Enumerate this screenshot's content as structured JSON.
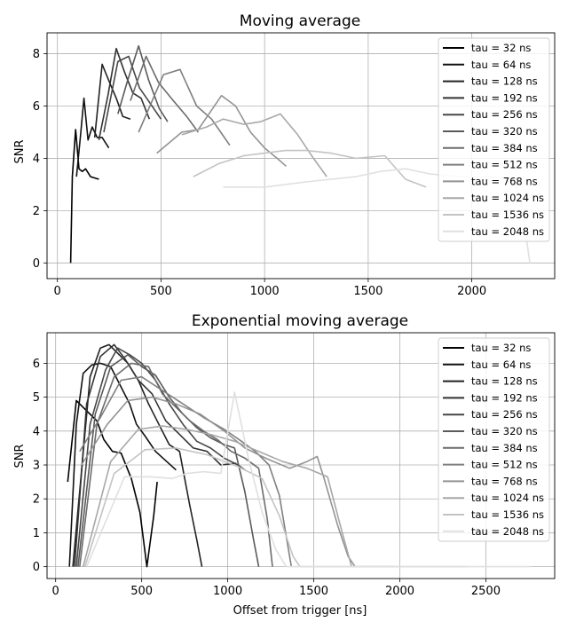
{
  "chart_data": [
    {
      "type": "line",
      "title": "Moving average",
      "xlabel": "",
      "ylabel": "SNR",
      "xlim": [
        -50,
        2400
      ],
      "ylim": [
        -0.6,
        8.8
      ],
      "xticks": [
        0,
        500,
        1000,
        1500,
        2000
      ],
      "yticks": [
        0,
        2,
        4,
        6,
        8
      ],
      "grid": true,
      "legend": "top-right",
      "series": [
        {
          "name": "tau = 32 ns",
          "color": "#000000",
          "x": [
            64,
            72,
            88,
            104,
            120,
            136,
            160,
            200
          ],
          "y": [
            0.0,
            3.3,
            5.1,
            3.6,
            3.5,
            3.6,
            3.3,
            3.2
          ]
        },
        {
          "name": "tau = 64 ns",
          "color": "#111111",
          "x": [
            92,
            112,
            128,
            148,
            168,
            192,
            216,
            248
          ],
          "y": [
            3.3,
            4.9,
            6.3,
            4.7,
            5.2,
            4.8,
            4.8,
            4.4
          ]
        },
        {
          "name": "tau = 128 ns",
          "color": "#222222",
          "x": [
            180,
            216,
            252,
            284,
            316,
            352
          ],
          "y": [
            4.8,
            7.6,
            6.9,
            6.3,
            5.6,
            5.5
          ]
        },
        {
          "name": "tau = 192 ns",
          "color": "#333333",
          "x": [
            200,
            244,
            284,
            324,
            364,
            404,
            444
          ],
          "y": [
            4.7,
            6.4,
            8.2,
            7.3,
            6.5,
            6.3,
            5.5
          ]
        },
        {
          "name": "tau = 256 ns",
          "color": "#474747",
          "x": [
            224,
            292,
            344,
            396,
            448,
            500
          ],
          "y": [
            5.0,
            7.7,
            7.9,
            6.7,
            6.1,
            5.5
          ]
        },
        {
          "name": "tau = 320 ns",
          "color": "#5a5a5a",
          "x": [
            292,
            336,
            392,
            440,
            492,
            532
          ],
          "y": [
            5.7,
            6.9,
            8.3,
            7.0,
            5.9,
            5.4
          ]
        },
        {
          "name": "tau = 384 ns",
          "color": "#6c6c6c",
          "x": [
            352,
            428,
            488,
            560,
            624,
            680
          ],
          "y": [
            6.2,
            7.9,
            6.9,
            6.2,
            5.6,
            5.0
          ]
        },
        {
          "name": "tau = 512 ns",
          "color": "#7f7f7f",
          "x": [
            392,
            512,
            592,
            672,
            744,
            832
          ],
          "y": [
            5.0,
            7.2,
            7.4,
            6.0,
            5.5,
            4.5
          ]
        },
        {
          "name": "tau = 768 ns",
          "color": "#939393",
          "x": [
            480,
            600,
            680,
            792,
            860,
            932,
            1000,
            1060,
            1104
          ],
          "y": [
            4.2,
            5.0,
            5.1,
            6.4,
            6.0,
            5.0,
            4.4,
            4.0,
            3.7
          ]
        },
        {
          "name": "tau = 1024 ns",
          "color": "#a8a8a8",
          "x": [
            600,
            720,
            800,
            900,
            980,
            1076,
            1160,
            1236,
            1300
          ],
          "y": [
            4.9,
            5.2,
            5.5,
            5.3,
            5.4,
            5.7,
            4.9,
            4.0,
            3.3
          ]
        },
        {
          "name": "tau = 1536 ns",
          "color": "#c3c3c3",
          "x": [
            656,
            780,
            900,
            1000,
            1100,
            1200,
            1320,
            1440,
            1580,
            1680,
            1780
          ],
          "y": [
            3.3,
            3.8,
            4.1,
            4.2,
            4.3,
            4.3,
            4.2,
            4.0,
            4.1,
            3.2,
            2.9
          ]
        },
        {
          "name": "tau = 2048 ns",
          "color": "#e0e0e0",
          "x": [
            800,
            900,
            1000,
            1100,
            1200,
            1320,
            1440,
            1560,
            1680,
            1800,
            1940,
            2080,
            2200,
            2240,
            2280
          ],
          "y": [
            2.9,
            2.9,
            2.9,
            3.0,
            3.1,
            3.2,
            3.3,
            3.5,
            3.6,
            3.4,
            3.3,
            3.3,
            3.2,
            2.3,
            0.0
          ]
        }
      ]
    },
    {
      "type": "line",
      "title": "Exponential moving average",
      "xlabel": "Offset from trigger [ns]",
      "ylabel": "SNR",
      "xlim": [
        -50,
        2900
      ],
      "ylim": [
        -0.35,
        6.9
      ],
      "xticks": [
        0,
        500,
        1000,
        1500,
        2000,
        2500
      ],
      "yticks": [
        0,
        1,
        2,
        3,
        4,
        5,
        6
      ],
      "grid": true,
      "legend": "top-right",
      "series": [
        {
          "name": "tau = 32 ns",
          "color": "#000000",
          "x": [
            70,
            120,
            180,
            240,
            280,
            330,
            380,
            440,
            490,
            530,
            570,
            590
          ],
          "y": [
            2.5,
            4.9,
            4.6,
            4.3,
            3.75,
            3.4,
            3.35,
            2.6,
            1.6,
            0.0,
            1.5,
            2.5
          ]
        },
        {
          "name": "tau = 64 ns",
          "color": "#111111",
          "x": [
            80,
            120,
            160,
            210,
            260,
            320,
            380,
            430,
            470,
            520,
            580,
            700
          ],
          "y": [
            0.0,
            4.2,
            5.7,
            5.95,
            6.0,
            5.9,
            5.3,
            4.8,
            4.2,
            3.85,
            3.4,
            2.85
          ]
        },
        {
          "name": "tau = 128 ns",
          "color": "#222222",
          "x": [
            100,
            150,
            200,
            260,
            310,
            360,
            420,
            480,
            540,
            600,
            660,
            720,
            780,
            820,
            850
          ],
          "y": [
            0.0,
            2.8,
            5.6,
            6.45,
            6.55,
            6.3,
            6.0,
            5.5,
            4.8,
            4.2,
            3.6,
            3.4,
            1.8,
            0.8,
            0.0
          ]
        },
        {
          "name": "tau = 192 ns",
          "color": "#333333",
          "x": [
            110,
            180,
            260,
            340,
            400,
            480,
            560,
            640,
            720,
            800,
            880,
            960,
            1050
          ],
          "y": [
            0.0,
            4.8,
            6.2,
            6.55,
            6.15,
            5.5,
            5.1,
            4.3,
            3.9,
            3.5,
            3.4,
            3.0,
            3.05
          ]
        },
        {
          "name": "tau = 256 ns",
          "color": "#474747",
          "x": [
            120,
            200,
            290,
            360,
            430,
            500,
            580,
            660,
            740,
            820,
            900,
            980,
            1060,
            1100
          ],
          "y": [
            0.0,
            4.2,
            5.8,
            6.45,
            6.25,
            6.0,
            5.5,
            4.8,
            4.2,
            3.7,
            3.5,
            3.2,
            3.0,
            2.85
          ]
        },
        {
          "name": "tau = 320 ns",
          "color": "#5a5a5a",
          "x": [
            130,
            230,
            320,
            420,
            500,
            580,
            660,
            740,
            820,
            900,
            980,
            1040,
            1100,
            1150,
            1180
          ],
          "y": [
            0.0,
            4.5,
            5.9,
            6.25,
            5.9,
            5.65,
            5.0,
            4.5,
            4.1,
            3.8,
            3.6,
            3.5,
            2.2,
            0.8,
            0.0
          ]
        },
        {
          "name": "tau = 384 ns",
          "color": "#6c6c6c",
          "x": [
            140,
            240,
            340,
            440,
            540,
            620,
            700,
            780,
            860,
            940,
            1020,
            1100,
            1180,
            1230,
            1260
          ],
          "y": [
            0.0,
            4.2,
            5.6,
            6.0,
            5.9,
            5.1,
            4.7,
            4.3,
            4.0,
            3.75,
            3.4,
            3.2,
            2.9,
            1.4,
            0.0
          ]
        },
        {
          "name": "tau = 512 ns",
          "color": "#7f7f7f",
          "x": [
            140,
            260,
            380,
            500,
            620,
            740,
            860,
            980,
            1080,
            1160,
            1240,
            1300,
            1340,
            1370
          ],
          "y": [
            3.4,
            4.4,
            5.5,
            5.6,
            5.2,
            4.8,
            4.4,
            4.05,
            3.7,
            3.4,
            3.0,
            2.1,
            0.9,
            0.0
          ]
        },
        {
          "name": "tau = 768 ns",
          "color": "#939393",
          "x": [
            150,
            300,
            420,
            560,
            700,
            840,
            980,
            1100,
            1220,
            1360,
            1460,
            1520,
            1560,
            1640,
            1700,
            1740
          ],
          "y": [
            3.0,
            4.2,
            4.9,
            5.0,
            4.8,
            4.5,
            4.0,
            3.5,
            3.2,
            2.9,
            3.1,
            3.25,
            2.6,
            1.2,
            0.3,
            0.0
          ]
        },
        {
          "name": "tau = 1024 ns",
          "color": "#a8a8a8",
          "x": [
            160,
            320,
            480,
            620,
            760,
            900,
            1040,
            1180,
            1320,
            1460,
            1580,
            1660,
            1720,
            1960
          ],
          "y": [
            0.0,
            3.1,
            4.05,
            4.15,
            4.05,
            3.9,
            3.7,
            3.4,
            3.1,
            2.9,
            2.65,
            1.1,
            0.0,
            0.0
          ]
        },
        {
          "name": "tau = 1536 ns",
          "color": "#c3c3c3",
          "x": [
            170,
            340,
            520,
            700,
            880,
            1060,
            1200,
            1300,
            1340,
            1380,
            1420,
            1440,
            2380
          ],
          "y": [
            0.0,
            2.75,
            3.45,
            3.5,
            3.3,
            2.95,
            2.6,
            1.5,
            0.9,
            0.3,
            0.0,
            0.0,
            0.0
          ]
        },
        {
          "name": "tau = 2048 ns",
          "color": "#e0e0e0",
          "x": [
            180,
            400,
            560,
            680,
            760,
            860,
            960,
            1040,
            1120,
            1200,
            1280,
            1340,
            2760
          ],
          "y": [
            0.0,
            2.65,
            2.65,
            2.6,
            2.75,
            2.8,
            2.75,
            5.15,
            3.2,
            1.6,
            0.5,
            0.0,
            0.0
          ]
        }
      ]
    }
  ]
}
